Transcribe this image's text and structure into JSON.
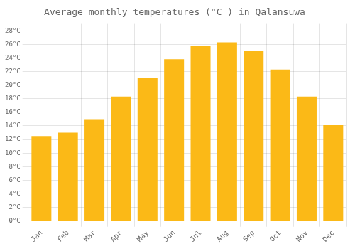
{
  "chart_data": {
    "type": "bar",
    "title": "Average monthly temperatures (°C ) in Qalansuwa",
    "categories": [
      "Jan",
      "Feb",
      "Mar",
      "Apr",
      "May",
      "Jun",
      "Jul",
      "Aug",
      "Sep",
      "Oct",
      "Nov",
      "Dec"
    ],
    "values": [
      12.5,
      13.0,
      15.0,
      18.3,
      21.0,
      23.8,
      25.8,
      26.3,
      25.0,
      22.3,
      18.3,
      14.1
    ],
    "color": "#FBB917",
    "ylim": [
      0,
      29
    ],
    "yticks": [
      {
        "value": 0,
        "label": "0°C"
      },
      {
        "value": 2,
        "label": "2°C"
      },
      {
        "value": 4,
        "label": "4°C"
      },
      {
        "value": 6,
        "label": "6°C"
      },
      {
        "value": 8,
        "label": "8°C"
      },
      {
        "value": 10,
        "label": "10°C"
      },
      {
        "value": 12,
        "label": "12°C"
      },
      {
        "value": 14,
        "label": "14°C"
      },
      {
        "value": 16,
        "label": "16°C"
      },
      {
        "value": 18,
        "label": "18°C"
      },
      {
        "value": 20,
        "label": "20°C"
      },
      {
        "value": 22,
        "label": "22°C"
      },
      {
        "value": 24,
        "label": "24°C"
      },
      {
        "value": 26,
        "label": "26°C"
      },
      {
        "value": 28,
        "label": "28°C"
      }
    ],
    "grid": true
  }
}
